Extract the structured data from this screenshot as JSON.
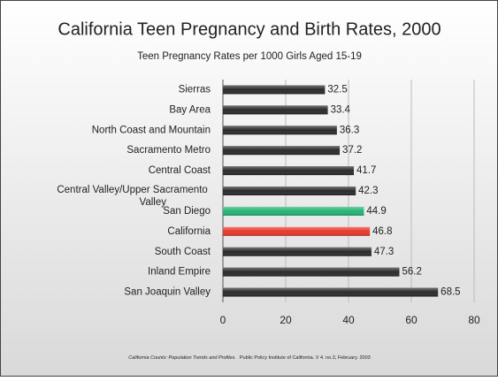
{
  "chart_data": {
    "type": "bar",
    "orientation": "horizontal",
    "title": "California Teen Pregnancy and Birth Rates, 2000",
    "subtitle": "Teen Pregnancy Rates per 1000 Girls Aged 15-19",
    "categories": [
      "Sierras",
      "Bay Area",
      "North Coast and Mountain",
      "Sacramento Metro",
      "Central Coast",
      "Central Valley/Upper Sacramento Valley",
      "San Diego",
      "California",
      "South Coast",
      "Inland Empire",
      "San Joaquin Valley"
    ],
    "values": [
      32.5,
      33.4,
      36.3,
      37.2,
      41.7,
      42.3,
      44.9,
      46.8,
      47.3,
      56.2,
      68.5
    ],
    "colors": [
      "#2a2a2a",
      "#2a2a2a",
      "#2a2a2a",
      "#2a2a2a",
      "#2a2a2a",
      "#2a2a2a",
      "#22b573",
      "#e8382a",
      "#2a2a2a",
      "#2a2a2a",
      "#2a2a2a"
    ],
    "xlim": [
      0,
      80
    ],
    "xticks": [
      0,
      20,
      40,
      60,
      80
    ],
    "grid": true,
    "source_title": "California Counts: Population Trends and Profiles.",
    "source": "Public Policy Institute of California.  V 4. no.3, February. 2003"
  }
}
